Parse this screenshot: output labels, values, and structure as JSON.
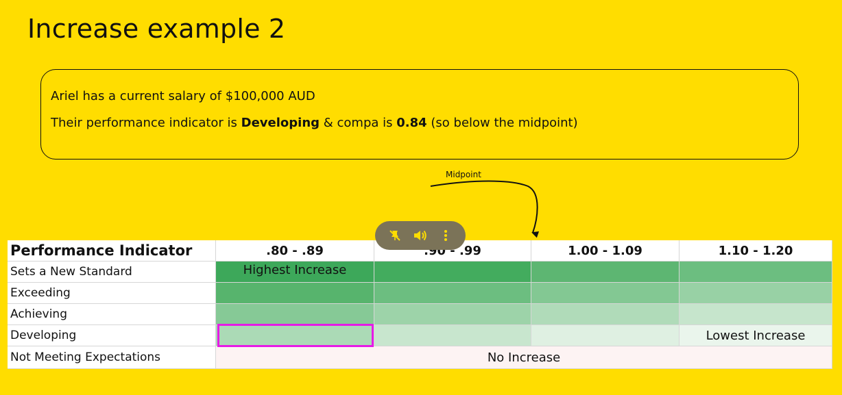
{
  "title": "Increase example 2",
  "callout": {
    "line1": "Ariel has a current salary of $100,000 AUD",
    "line2_pre": "Their performance indicator is ",
    "line2_bold1": "Developing",
    "line2_mid": " & compa is ",
    "line2_bold2": "0.84",
    "line2_post": " (so below the midpoint)"
  },
  "midpoint_label": "Midpoint",
  "table": {
    "header": [
      "Performance Indicator",
      ".80 - .89",
      ".90 - .99",
      "1.00 - 1.09",
      "1.10 - 1.20"
    ],
    "rows": [
      {
        "label": "Sets a New Standard",
        "colors": [
          "#3DA85A",
          "#43AC5E",
          "#5DB672",
          "#6CBE80"
        ],
        "text": "Highest Increase"
      },
      {
        "label": "Exceeding",
        "colors": [
          "#57B46D",
          "#6CBE80",
          "#83C893",
          "#98D1A5"
        ]
      },
      {
        "label": "Achieving",
        "colors": [
          "#86C996",
          "#9DD3A9",
          "#B0DBB9",
          "#C6E5CC"
        ]
      },
      {
        "label": "Developing",
        "colors": [
          "#ABDAB6",
          "#C8E6CE",
          "#DFF0E2",
          "#EAF5EC"
        ],
        "text": "Lowest Increase"
      },
      {
        "label": "Not Meeting Expectations",
        "merged_color": "#FDF3F3",
        "text": "No Increase"
      }
    ]
  },
  "toolbar": {
    "icons": [
      "unpin-icon",
      "volume-icon",
      "more-vertical-icon"
    ],
    "color": "#FFDD00"
  },
  "colors": {
    "background": "#FFDD00",
    "highlight": "#E61BE6"
  }
}
